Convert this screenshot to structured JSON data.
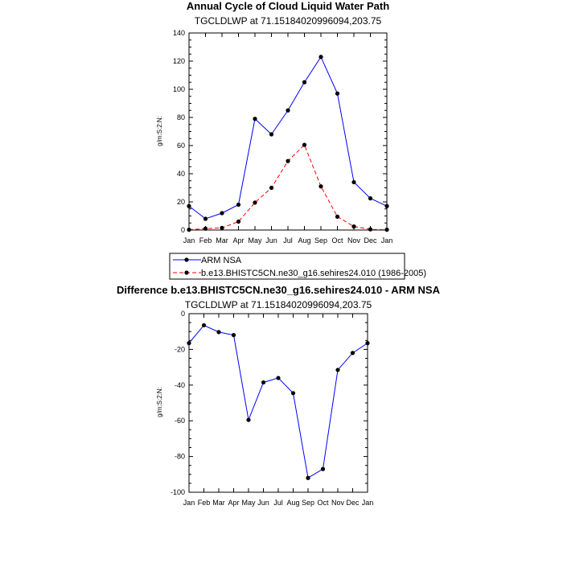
{
  "chart_data": [
    {
      "type": "line",
      "title": "Annual Cycle of Cloud Liquid Water Path",
      "subtitle": "TGCLDLWP at 71.15184020996094,203.75",
      "ylabel": "g/m:S:2:N:",
      "categories": [
        "Jan",
        "Feb",
        "Mar",
        "Apr",
        "May",
        "Jun",
        "Jul",
        "Aug",
        "Sep",
        "Oct",
        "Nov",
        "Dec",
        "Jan"
      ],
      "ylim": [
        0,
        140
      ],
      "yticks": [
        "0",
        "20",
        "40",
        "60",
        "80",
        "100",
        "120",
        "140"
      ],
      "yminor_step": 5,
      "legend": "below",
      "series": [
        {
          "name": "ARM NSA",
          "color": "#0000ff",
          "dash": "solid",
          "values": [
            17,
            8,
            12,
            18,
            79,
            68,
            85,
            105,
            123,
            97,
            34,
            22.5,
            17
          ]
        },
        {
          "name": "b.e13.BHISTC5CN.ne30_g16.sehires24.010 (1986-2005)",
          "color": "#ff0000",
          "dash": "dashed",
          "values": [
            0.2,
            1,
            1.5,
            6,
            19.5,
            30,
            49,
            60.5,
            31,
            9.5,
            2.5,
            0.5,
            0.2
          ]
        }
      ]
    },
    {
      "type": "line",
      "title": "Difference b.e13.BHISTC5CN.ne30_g16.sehires24.010 - ARM NSA",
      "subtitle": "TGCLDLWP at 71.15184020996094,203.75",
      "ylabel": "g/m:S:2:N:",
      "categories": [
        "Jan",
        "Feb",
        "Mar",
        "Apr",
        "May",
        "Jun",
        "Jul",
        "Aug",
        "Sep",
        "Oct",
        "Nov",
        "Dec",
        "Jan"
      ],
      "ylim": [
        -100,
        0
      ],
      "yticks": [
        "-100",
        "-80",
        "-60",
        "-40",
        "-20",
        "0"
      ],
      "yminor_step": 5,
      "series": [
        {
          "color": "#0000ff",
          "dash": "solid",
          "values": [
            -16.5,
            -6.5,
            -10.3,
            -12,
            -59.5,
            -38.5,
            -36,
            -44.5,
            -92,
            -87,
            -31.5,
            -22,
            -16.5
          ]
        }
      ]
    }
  ]
}
